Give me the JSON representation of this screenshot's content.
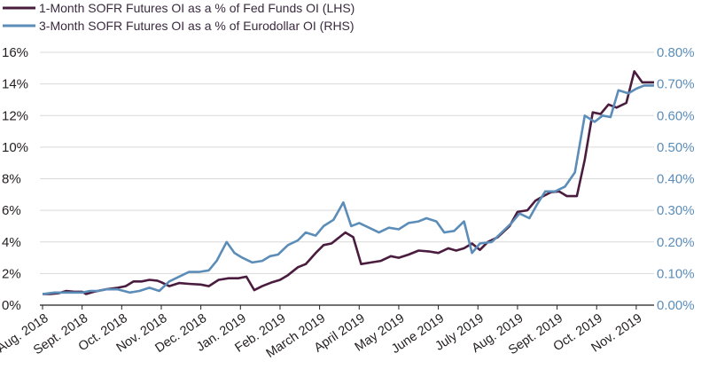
{
  "chart_data": {
    "type": "line",
    "legend": [
      {
        "name": "1-Month SOFR Futures OI as a % of Fed Funds OI (LHS)",
        "color": "#4a1c3e"
      },
      {
        "name": "3-Month SOFR Futures OI as a % of Eurodollar OI (RHS)",
        "color": "#5b8db8"
      }
    ],
    "left_axis": {
      "min": 0,
      "max": 16,
      "ticks": [
        "0%",
        "2%",
        "4%",
        "6%",
        "8%",
        "10%",
        "12%",
        "14%",
        "16%"
      ]
    },
    "right_axis": {
      "min": 0,
      "max": 0.8,
      "ticks": [
        "0.00%",
        "0.10%",
        "0.20%",
        "0.30%",
        "0.40%",
        "0.50%",
        "0.60%",
        "0.70%",
        "0.80%"
      ]
    },
    "x_labels": [
      "Aug. 2018",
      "Sept. 2018",
      "Oct. 2018",
      "Nov. 2018",
      "Dec. 2018",
      "Jan. 2019",
      "Feb. 2019",
      "March 2019",
      "April 2019",
      "May 2019",
      "June 2019",
      "July 2019",
      "Aug. 2019",
      "Sept. 2019",
      "Oct. 2019",
      "Nov. 2019"
    ],
    "x_range": [
      0,
      15.45
    ],
    "series": [
      {
        "name": "1-Month SOFR Futures OI as a % of Fed Funds OI (LHS)",
        "axis": "left",
        "points": [
          [
            0,
            0.7
          ],
          [
            0.2,
            0.7
          ],
          [
            0.4,
            0.75
          ],
          [
            0.6,
            0.9
          ],
          [
            0.8,
            0.85
          ],
          [
            1.0,
            0.85
          ],
          [
            1.1,
            0.7
          ],
          [
            1.3,
            0.85
          ],
          [
            1.6,
            1.0
          ],
          [
            1.9,
            1.1
          ],
          [
            2.1,
            1.2
          ],
          [
            2.3,
            1.5
          ],
          [
            2.5,
            1.5
          ],
          [
            2.7,
            1.6
          ],
          [
            2.9,
            1.55
          ],
          [
            3.0,
            1.45
          ],
          [
            3.2,
            1.2
          ],
          [
            3.45,
            1.4
          ],
          [
            3.7,
            1.35
          ],
          [
            4.0,
            1.3
          ],
          [
            4.2,
            1.2
          ],
          [
            4.45,
            1.6
          ],
          [
            4.7,
            1.7
          ],
          [
            4.95,
            1.7
          ],
          [
            5.15,
            1.8
          ],
          [
            5.35,
            0.95
          ],
          [
            5.55,
            1.2
          ],
          [
            5.8,
            1.45
          ],
          [
            6.0,
            1.6
          ],
          [
            6.2,
            1.9
          ],
          [
            6.45,
            2.4
          ],
          [
            6.65,
            2.6
          ],
          [
            6.9,
            3.3
          ],
          [
            7.1,
            3.8
          ],
          [
            7.3,
            3.9
          ],
          [
            7.5,
            4.3
          ],
          [
            7.65,
            4.6
          ],
          [
            7.85,
            4.3
          ],
          [
            8.05,
            2.6
          ],
          [
            8.3,
            2.7
          ],
          [
            8.55,
            2.8
          ],
          [
            8.8,
            3.1
          ],
          [
            9.0,
            3.0
          ],
          [
            9.25,
            3.2
          ],
          [
            9.5,
            3.45
          ],
          [
            9.75,
            3.4
          ],
          [
            10.0,
            3.3
          ],
          [
            10.25,
            3.6
          ],
          [
            10.45,
            3.45
          ],
          [
            10.65,
            3.6
          ],
          [
            10.85,
            3.9
          ],
          [
            11.05,
            3.5
          ],
          [
            11.25,
            4.0
          ],
          [
            11.5,
            4.3
          ],
          [
            11.8,
            5.0
          ],
          [
            12.0,
            5.9
          ],
          [
            12.25,
            6.0
          ],
          [
            12.45,
            6.6
          ],
          [
            12.65,
            6.9
          ],
          [
            12.85,
            7.15
          ],
          [
            13.05,
            7.2
          ],
          [
            13.25,
            6.9
          ],
          [
            13.5,
            6.9
          ],
          [
            13.7,
            9.2
          ],
          [
            13.9,
            12.2
          ],
          [
            14.1,
            12.1
          ],
          [
            14.3,
            12.7
          ],
          [
            14.5,
            12.5
          ],
          [
            14.75,
            12.8
          ],
          [
            14.95,
            14.8
          ],
          [
            15.15,
            14.1
          ],
          [
            15.45,
            14.1
          ]
        ]
      },
      {
        "name": "3-Month SOFR Futures OI as a % of Eurodollar OI (RHS)",
        "axis": "right",
        "points": [
          [
            0,
            0.035
          ],
          [
            0.3,
            0.04
          ],
          [
            0.5,
            0.04
          ],
          [
            0.8,
            0.04
          ],
          [
            1.0,
            0.04
          ],
          [
            1.2,
            0.045
          ],
          [
            1.4,
            0.045
          ],
          [
            1.6,
            0.05
          ],
          [
            1.9,
            0.05
          ],
          [
            2.2,
            0.04
          ],
          [
            2.45,
            0.045
          ],
          [
            2.7,
            0.055
          ],
          [
            2.95,
            0.045
          ],
          [
            3.2,
            0.075
          ],
          [
            3.45,
            0.09
          ],
          [
            3.7,
            0.105
          ],
          [
            3.95,
            0.105
          ],
          [
            4.2,
            0.11
          ],
          [
            4.4,
            0.14
          ],
          [
            4.65,
            0.2
          ],
          [
            4.85,
            0.165
          ],
          [
            5.05,
            0.15
          ],
          [
            5.3,
            0.135
          ],
          [
            5.55,
            0.14
          ],
          [
            5.75,
            0.155
          ],
          [
            5.95,
            0.16
          ],
          [
            6.2,
            0.19
          ],
          [
            6.45,
            0.205
          ],
          [
            6.65,
            0.23
          ],
          [
            6.9,
            0.22
          ],
          [
            7.1,
            0.25
          ],
          [
            7.35,
            0.27
          ],
          [
            7.6,
            0.325
          ],
          [
            7.8,
            0.25
          ],
          [
            8.0,
            0.26
          ],
          [
            8.25,
            0.245
          ],
          [
            8.5,
            0.23
          ],
          [
            8.75,
            0.245
          ],
          [
            9.0,
            0.24
          ],
          [
            9.25,
            0.26
          ],
          [
            9.5,
            0.265
          ],
          [
            9.7,
            0.275
          ],
          [
            9.95,
            0.265
          ],
          [
            10.15,
            0.23
          ],
          [
            10.4,
            0.235
          ],
          [
            10.65,
            0.265
          ],
          [
            10.85,
            0.165
          ],
          [
            11.05,
            0.195
          ],
          [
            11.35,
            0.2
          ],
          [
            11.6,
            0.23
          ],
          [
            11.85,
            0.26
          ],
          [
            12.05,
            0.29
          ],
          [
            12.3,
            0.275
          ],
          [
            12.5,
            0.32
          ],
          [
            12.7,
            0.36
          ],
          [
            12.95,
            0.36
          ],
          [
            13.2,
            0.375
          ],
          [
            13.45,
            0.42
          ],
          [
            13.7,
            0.6
          ],
          [
            13.95,
            0.58
          ],
          [
            14.15,
            0.6
          ],
          [
            14.35,
            0.595
          ],
          [
            14.55,
            0.68
          ],
          [
            14.8,
            0.67
          ],
          [
            15.0,
            0.685
          ],
          [
            15.2,
            0.695
          ],
          [
            15.45,
            0.695
          ]
        ]
      }
    ]
  }
}
